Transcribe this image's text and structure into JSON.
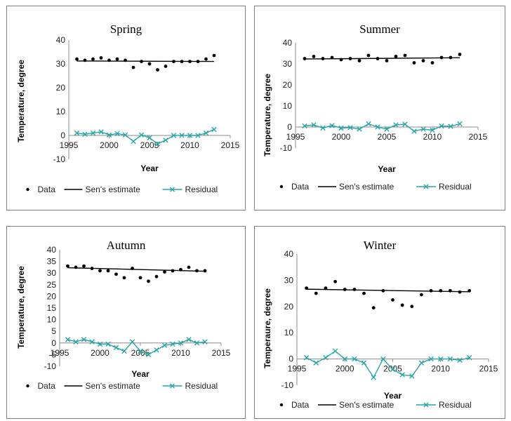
{
  "chart_data": [
    {
      "type": "line",
      "title": "Spring",
      "xlabel": "Year",
      "ylabel": "Temperature, degree",
      "xlim": [
        1995,
        2015
      ],
      "ylim": [
        -10,
        40
      ],
      "xticks": [
        "1995",
        "2000",
        "2005",
        "2010",
        "2015"
      ],
      "yticks": [
        "-10",
        "0",
        "10",
        "20",
        "30",
        "40"
      ],
      "legend": [
        "Data",
        "Sen's estimate",
        "Residual"
      ],
      "legend_position": "bottom",
      "series": [
        {
          "name": "Data",
          "style": "points",
          "color": "#000000",
          "x": [
            1996,
            1997,
            1998,
            1999,
            2000,
            2001,
            2002,
            2003,
            2004,
            2005,
            2006,
            2007,
            2008,
            2009,
            2010,
            2011,
            2012,
            2013
          ],
          "y": [
            32,
            31.5,
            32,
            32.5,
            31.5,
            32,
            31.5,
            28.5,
            31,
            30,
            27.5,
            29,
            31,
            31,
            31,
            31,
            32,
            33.5
          ]
        },
        {
          "name": "Sen's estimate",
          "style": "line",
          "color": "#000000",
          "x": [
            1996,
            2013
          ],
          "y": [
            31.2,
            31.0
          ]
        },
        {
          "name": "Residual",
          "style": "line-x",
          "color": "#2aa5a5",
          "x": [
            1996,
            1997,
            1998,
            1999,
            2000,
            2001,
            2002,
            2003,
            2004,
            2005,
            2006,
            2007,
            2008,
            2009,
            2010,
            2011,
            2012,
            2013
          ],
          "y": [
            1,
            0.5,
            1,
            1.5,
            0.2,
            0.8,
            0.2,
            -2.5,
            0.2,
            -1,
            -3.5,
            -2,
            0,
            0,
            0,
            0,
            1,
            2.5
          ]
        }
      ]
    },
    {
      "type": "line",
      "title": "Summer",
      "xlabel": "Year",
      "ylabel": "Temperature, degree",
      "xlim": [
        1995,
        2015
      ],
      "ylim": [
        -10,
        40
      ],
      "xticks": [
        "1995",
        "2000",
        "2005",
        "2010",
        "2015"
      ],
      "yticks": [
        "-10",
        "0",
        "10",
        "20",
        "30",
        "40"
      ],
      "legend": [
        "Data",
        "Sen's estimate",
        "Residual"
      ],
      "legend_position": "bottom",
      "series": [
        {
          "name": "Data",
          "style": "points",
          "color": "#000000",
          "x": [
            1996,
            1997,
            1998,
            1999,
            2000,
            2001,
            2002,
            2003,
            2004,
            2005,
            2006,
            2007,
            2008,
            2009,
            2010,
            2011,
            2012,
            2013
          ],
          "y": [
            32.5,
            33.5,
            32.5,
            33,
            32,
            32.5,
            31.5,
            34,
            32.5,
            31.5,
            33.5,
            34,
            30.5,
            31.5,
            30.5,
            33,
            33,
            34.5
          ]
        },
        {
          "name": "Sen's estimate",
          "style": "line",
          "color": "#000000",
          "x": [
            1996,
            2013
          ],
          "y": [
            32.3,
            32.9
          ]
        },
        {
          "name": "Residual",
          "style": "line-x",
          "color": "#2aa5a5",
          "x": [
            1996,
            1997,
            1998,
            1999,
            2000,
            2001,
            2002,
            2003,
            2004,
            2005,
            2006,
            2007,
            2008,
            2009,
            2010,
            2011,
            2012,
            2013
          ],
          "y": [
            0.5,
            1,
            -0.5,
            0.7,
            -0.5,
            -0.3,
            -1,
            1.5,
            0,
            -1,
            1,
            1.3,
            -2,
            -1,
            -1.5,
            0.5,
            0.3,
            1.5
          ]
        }
      ]
    },
    {
      "type": "line",
      "title": "Autumn",
      "xlabel": "Year",
      "ylabel": "Temperature, degree",
      "xlim": [
        1995,
        2015
      ],
      "ylim": [
        -10,
        40
      ],
      "xticks": [
        "1995",
        "2000",
        "2005",
        "2010",
        "2015"
      ],
      "yticks": [
        "-10",
        "-5",
        "0",
        "5",
        "10",
        "15",
        "20",
        "25",
        "30",
        "35",
        "40"
      ],
      "legend": [
        "Data",
        "Sen's estimate",
        "Residual"
      ],
      "legend_position": "bottom",
      "series": [
        {
          "name": "Data",
          "style": "points",
          "color": "#000000",
          "x": [
            1996,
            1997,
            1998,
            1999,
            2000,
            2001,
            2002,
            2003,
            2004,
            2005,
            2006,
            2007,
            2008,
            2009,
            2010,
            2011,
            2012,
            2013
          ],
          "y": [
            33,
            32.5,
            33,
            32,
            31,
            31,
            29.5,
            28,
            32,
            28,
            26.5,
            28.5,
            30.5,
            31,
            31.5,
            32.5,
            31,
            31
          ]
        },
        {
          "name": "Sen's estimate",
          "style": "line",
          "color": "#000000",
          "x": [
            1996,
            2013
          ],
          "y": [
            32.3,
            30.8
          ]
        },
        {
          "name": "Residual",
          "style": "line-x",
          "color": "#2aa5a5",
          "x": [
            1996,
            1997,
            1998,
            1999,
            2000,
            2001,
            2002,
            2003,
            2004,
            2005,
            2006,
            2007,
            2008,
            2009,
            2010,
            2011,
            2012,
            2013
          ],
          "y": [
            1.5,
            0.5,
            1.5,
            0.5,
            -0.5,
            -0.5,
            -2,
            -3.5,
            0.5,
            -3.5,
            -5,
            -3,
            -1,
            -0.5,
            0,
            1.5,
            0,
            0.5
          ]
        }
      ]
    },
    {
      "type": "line",
      "title": "Winter",
      "xlabel": "Year",
      "ylabel": "Temperaure, degree",
      "xlim": [
        1995,
        2015
      ],
      "ylim": [
        -10,
        40
      ],
      "xticks": [
        "1995",
        "2000",
        "2005",
        "2010",
        "2015"
      ],
      "yticks": [
        "-10",
        "0",
        "10",
        "20",
        "30",
        "40"
      ],
      "legend": [
        "Data",
        "Sen's estimate",
        "Residual"
      ],
      "legend_position": "bottom",
      "series": [
        {
          "name": "Data",
          "style": "points",
          "color": "#000000",
          "x": [
            1996,
            1997,
            1998,
            1999,
            2000,
            2001,
            2002,
            2003,
            2004,
            2005,
            2006,
            2007,
            2008,
            2009,
            2010,
            2011,
            2012,
            2013
          ],
          "y": [
            27,
            25,
            27,
            29.5,
            26.5,
            26.5,
            25,
            19.5,
            26,
            22.5,
            20.5,
            20,
            24.5,
            26,
            26,
            26,
            25.5,
            26
          ]
        },
        {
          "name": "Sen's estimate",
          "style": "line",
          "color": "#000000",
          "x": [
            1996,
            2013
          ],
          "y": [
            26.6,
            25.6
          ]
        },
        {
          "name": "Residual",
          "style": "line-x",
          "color": "#2aa5a5",
          "x": [
            1996,
            1997,
            1998,
            1999,
            2000,
            2001,
            2002,
            2003,
            2004,
            2005,
            2006,
            2007,
            2008,
            2009,
            2010,
            2011,
            2012,
            2013
          ],
          "y": [
            0.5,
            -1.5,
            0.5,
            3,
            0,
            0,
            -1.5,
            -7,
            0,
            -4,
            -6,
            -6.5,
            -1.5,
            0,
            0,
            0,
            -0.5,
            0.5
          ]
        }
      ]
    }
  ]
}
